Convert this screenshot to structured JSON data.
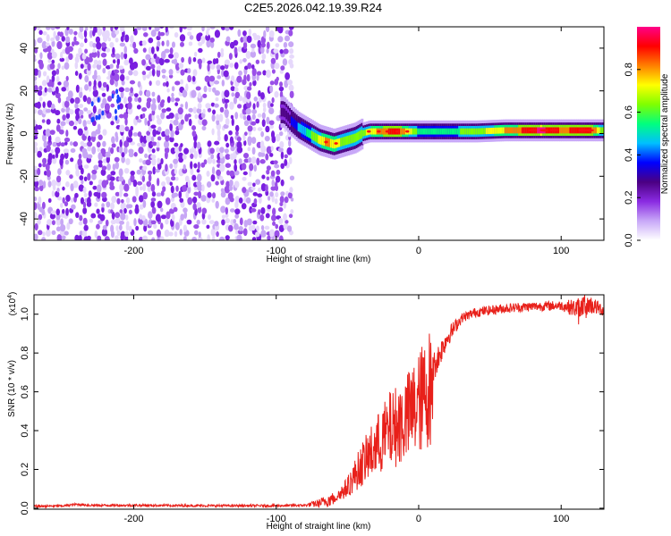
{
  "title": "C2E5.2026.042.19.39.R24",
  "chart_data": [
    {
      "type": "heatmap",
      "name": "spectrogram",
      "xlabel": "Height of straight line (km)",
      "ylabel": "Frequency (Hz)",
      "xlim": [
        -270,
        130
      ],
      "ylim": [
        -50,
        50
      ],
      "xticks": [
        -200,
        -100,
        0,
        100
      ],
      "yticks": [
        -40,
        -20,
        0,
        20,
        40
      ],
      "colorbar": {
        "label": "Normalized spectral amplitude",
        "range": [
          0,
          1
        ],
        "ticks": [
          0.0,
          0.2,
          0.4,
          0.6,
          0.8
        ],
        "tick_labels": [
          "0.0",
          "0.2",
          "0.4",
          "0.6",
          "0.8"
        ],
        "colormap": [
          "#ffffff",
          "#c8a8f8",
          "#8a2be2",
          "#4b0082",
          "#0000ff",
          "#00bfff",
          "#00ff7f",
          "#7fff00",
          "#ffff00",
          "#ff7f00",
          "#ff0000",
          "#ff0088"
        ]
      },
      "noise_region_x": [
        -270,
        -90
      ],
      "signal_ridge": [
        {
          "x": -95,
          "f": 10
        },
        {
          "x": -90,
          "f": 6
        },
        {
          "x": -85,
          "f": 3
        },
        {
          "x": -80,
          "f": 1
        },
        {
          "x": -75,
          "f": -1
        },
        {
          "x": -70,
          "f": -3
        },
        {
          "x": -65,
          "f": -4
        },
        {
          "x": -60,
          "f": -5
        },
        {
          "x": -55,
          "f": -4
        },
        {
          "x": -50,
          "f": -3
        },
        {
          "x": -45,
          "f": -2
        },
        {
          "x": -40,
          "f": 0
        },
        {
          "x": -35,
          "f": 1
        },
        {
          "x": -30,
          "f": 1
        },
        {
          "x": -20,
          "f": 1
        },
        {
          "x": -10,
          "f": 1
        },
        {
          "x": 0,
          "f": 1
        },
        {
          "x": 20,
          "f": 1
        },
        {
          "x": 40,
          "f": 1
        },
        {
          "x": 60,
          "f": 1.5
        },
        {
          "x": 80,
          "f": 1.5
        },
        {
          "x": 100,
          "f": 1.5
        },
        {
          "x": 120,
          "f": 1.5
        },
        {
          "x": 130,
          "f": 1.5
        }
      ],
      "ridge_amplitude": [
        {
          "x": -95,
          "a": 0.25
        },
        {
          "x": -80,
          "a": 0.5
        },
        {
          "x": -65,
          "a": 0.8
        },
        {
          "x": -50,
          "a": 0.6
        },
        {
          "x": -35,
          "a": 0.7
        },
        {
          "x": -25,
          "a": 0.85
        },
        {
          "x": -15,
          "a": 0.9
        },
        {
          "x": 0,
          "a": 0.55
        },
        {
          "x": 20,
          "a": 0.55
        },
        {
          "x": 50,
          "a": 0.7
        },
        {
          "x": 70,
          "a": 0.85
        },
        {
          "x": 85,
          "a": 0.98
        },
        {
          "x": 100,
          "a": 0.85
        },
        {
          "x": 120,
          "a": 0.9
        },
        {
          "x": 130,
          "a": 0.6
        }
      ]
    },
    {
      "type": "line",
      "name": "snr",
      "xlabel": "Height of straight line (km)",
      "ylabel": "SNR (10 * v/v)",
      "y_multiplier_label": "(x10",
      "y_multiplier_exp": "4",
      "xlim": [
        -270,
        130
      ],
      "ylim": [
        -0.005,
        1.1
      ],
      "xticks": [
        -200,
        -100,
        0,
        100
      ],
      "yticks": [
        0.0,
        0.2,
        0.4,
        0.6,
        0.8,
        1.0
      ],
      "ytick_labels": [
        "0.0",
        "0.2",
        "0.4",
        "0.6",
        "0.8",
        "1.0"
      ],
      "line_color": "#e8201a",
      "envelope": [
        {
          "x": -270,
          "y": 0.01
        },
        {
          "x": -250,
          "y": 0.012
        },
        {
          "x": -240,
          "y": 0.02
        },
        {
          "x": -230,
          "y": 0.015
        },
        {
          "x": -200,
          "y": 0.015
        },
        {
          "x": -150,
          "y": 0.013
        },
        {
          "x": -100,
          "y": 0.013
        },
        {
          "x": -80,
          "y": 0.015
        },
        {
          "x": -70,
          "y": 0.025
        },
        {
          "x": -60,
          "y": 0.05
        },
        {
          "x": -50,
          "y": 0.12
        },
        {
          "x": -40,
          "y": 0.25
        },
        {
          "x": -30,
          "y": 0.35
        },
        {
          "x": -20,
          "y": 0.45
        },
        {
          "x": -10,
          "y": 0.5
        },
        {
          "x": 0,
          "y": 0.6
        },
        {
          "x": 10,
          "y": 0.72
        },
        {
          "x": 20,
          "y": 0.88
        },
        {
          "x": 30,
          "y": 0.98
        },
        {
          "x": 40,
          "y": 1.01
        },
        {
          "x": 60,
          "y": 1.03
        },
        {
          "x": 80,
          "y": 1.04
        },
        {
          "x": 100,
          "y": 1.045
        },
        {
          "x": 110,
          "y": 1.03
        },
        {
          "x": 120,
          "y": 1.05
        },
        {
          "x": 130,
          "y": 1.02
        }
      ],
      "noise_amp": [
        {
          "x": -270,
          "a": 0.006
        },
        {
          "x": -80,
          "a": 0.006
        },
        {
          "x": -60,
          "a": 0.04
        },
        {
          "x": -45,
          "a": 0.14
        },
        {
          "x": -30,
          "a": 0.25
        },
        {
          "x": -15,
          "a": 0.3
        },
        {
          "x": 0,
          "a": 0.2
        },
        {
          "x": 10,
          "a": 0.08
        },
        {
          "x": 30,
          "a": 0.025
        },
        {
          "x": 100,
          "a": 0.025
        },
        {
          "x": 115,
          "a": 0.06
        },
        {
          "x": 130,
          "a": 0.03
        }
      ]
    }
  ]
}
